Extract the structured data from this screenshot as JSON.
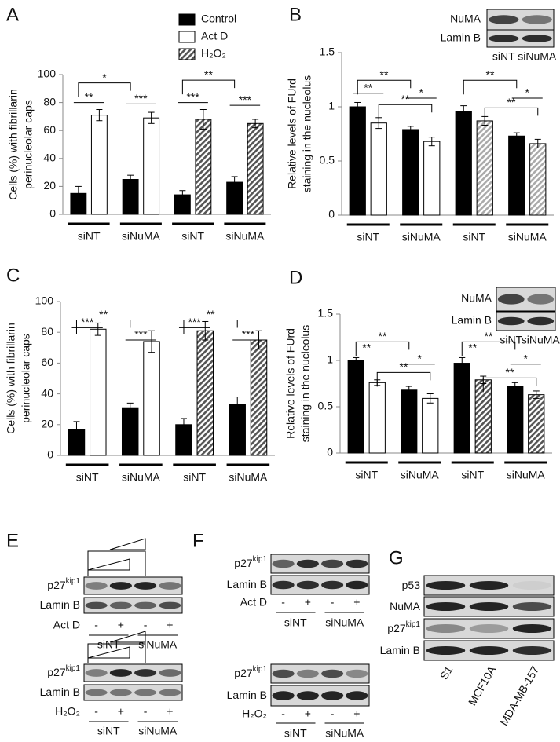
{
  "chart_data": [
    {
      "type": "bar",
      "panel": "A",
      "ylabel": [
        "Cells (%) with fibrillarin",
        "perinucleolar caps"
      ],
      "categories": [
        "siNT",
        "siNuMA",
        "siNT",
        "siNuMA"
      ],
      "series": [
        {
          "name": "Control",
          "color": "#000000",
          "values": [
            15,
            25,
            14,
            23
          ],
          "errors": [
            5,
            3,
            3,
            4
          ]
        },
        {
          "name": "Act D",
          "color": "#ffffff",
          "values": [
            71,
            69,
            null,
            null
          ],
          "errors": [
            4,
            4,
            null,
            null
          ]
        },
        {
          "name": "H₂O₂",
          "color": "#555555",
          "hatch": true,
          "values": [
            null,
            null,
            68,
            65
          ],
          "errors": [
            null,
            null,
            7,
            3
          ]
        }
      ],
      "ylim": [
        0,
        100
      ],
      "yticks": [
        0,
        20,
        40,
        60,
        80,
        100
      ],
      "annotations": [
        "*",
        "**",
        "***",
        "**",
        "***",
        "***"
      ]
    },
    {
      "type": "bar",
      "panel": "B",
      "ylabel": [
        "Relative levels of FUrd",
        "staining in the nucleolus"
      ],
      "categories": [
        "siNT",
        "siNuMA",
        "siNT",
        "siNuMA"
      ],
      "series": [
        {
          "color": "#000000",
          "values": [
            1.0,
            0.79,
            0.96,
            0.73
          ],
          "errors": [
            0.04,
            0.03,
            0.05,
            0.03
          ]
        },
        {
          "color": "#ffffff",
          "values": [
            0.85,
            0.68,
            null,
            null
          ],
          "errors": [
            0.05,
            0.04,
            null,
            null
          ]
        },
        {
          "color": "#aaaaaa",
          "hatch": true,
          "values": [
            null,
            null,
            0.87,
            0.66
          ],
          "errors": [
            null,
            null,
            0.04,
            0.04
          ]
        }
      ],
      "ylim": [
        0,
        1.5
      ],
      "yticks": [
        0,
        0.5,
        1,
        1.5
      ],
      "annotations": [
        "**",
        "**",
        "**",
        "*",
        "**",
        "*",
        "**"
      ],
      "inset": {
        "rows": [
          "NuMA",
          "Lamin B"
        ],
        "lanes": [
          "siNT",
          "siNuMA"
        ]
      }
    },
    {
      "type": "bar",
      "panel": "C",
      "ylabel": [
        "Cells (%) with fibrillarin",
        "perinucleolar caps"
      ],
      "categories": [
        "siNT",
        "siNuMA",
        "siNT",
        "siNuMA"
      ],
      "series": [
        {
          "color": "#000000",
          "values": [
            17,
            31,
            20,
            33
          ],
          "errors": [
            5,
            3,
            4,
            5
          ]
        },
        {
          "color": "#ffffff",
          "values": [
            82,
            74,
            null,
            null
          ],
          "errors": [
            4,
            7,
            null,
            null
          ]
        },
        {
          "color": "#555555",
          "hatch": true,
          "values": [
            null,
            null,
            81,
            75
          ],
          "errors": [
            null,
            null,
            6,
            6
          ]
        }
      ],
      "ylim": [
        0,
        100
      ],
      "yticks": [
        0,
        20,
        40,
        60,
        80,
        100
      ],
      "annotations": [
        "**",
        "***",
        "***",
        "**",
        "***",
        "***"
      ]
    },
    {
      "type": "bar",
      "panel": "D",
      "ylabel": [
        "Relative levels of FUrd",
        "staining in the nucleolus"
      ],
      "categories": [
        "siNT",
        "siNuMA",
        "siNT",
        "siNuMA"
      ],
      "series": [
        {
          "color": "#000000",
          "values": [
            1.0,
            0.68,
            0.97,
            0.72
          ],
          "errors": [
            0.03,
            0.04,
            0.06,
            0.04
          ]
        },
        {
          "color": "#ffffff",
          "values": [
            0.76,
            0.59,
            null,
            null
          ],
          "errors": [
            0.03,
            0.05,
            null,
            null
          ]
        },
        {
          "color": "#555555",
          "hatch": true,
          "values": [
            null,
            null,
            0.79,
            0.63
          ],
          "errors": [
            null,
            null,
            0.04,
            0.04
          ]
        }
      ],
      "ylim": [
        0,
        1.5
      ],
      "yticks": [
        0,
        0.5,
        1,
        1.5
      ],
      "annotations": [
        "**",
        "**",
        "**",
        "*",
        "**",
        "**",
        "*",
        "**"
      ],
      "inset": {
        "rows": [
          "NuMA",
          "Lamin B"
        ],
        "lanes": [
          "siNT",
          "siNuMA"
        ]
      }
    }
  ],
  "blots": {
    "E": {
      "panel": "E",
      "top": {
        "rows": [
          {
            "label": "p27",
            "sup": "kip1"
          },
          {
            "label": "Lamin B"
          }
        ],
        "treatment": "Act D",
        "signs": [
          "-",
          "+",
          "-",
          "+"
        ],
        "groups": [
          "siNT",
          "siNuMA"
        ]
      },
      "bottom": {
        "rows": [
          {
            "label": "p27",
            "sup": "kip1"
          },
          {
            "label": "Lamin B"
          }
        ],
        "treatment": "H₂O₂",
        "signs": [
          "-",
          "+",
          "-",
          "+"
        ],
        "groups": [
          "siNT",
          "siNuMA"
        ]
      }
    },
    "F": {
      "panel": "F",
      "top": {
        "rows": [
          {
            "label": "p27",
            "sup": "kip1"
          },
          {
            "label": "Lamin B"
          }
        ],
        "treatment": "Act D",
        "signs": [
          "-",
          "+",
          "-",
          "+"
        ],
        "groups": [
          "siNT",
          "siNuMA"
        ]
      },
      "bottom": {
        "rows": [
          {
            "label": "p27",
            "sup": "kip1"
          },
          {
            "label": "Lamin B"
          }
        ],
        "treatment": "H₂O₂",
        "signs": [
          "-",
          "+",
          "-",
          "+"
        ],
        "groups": [
          "siNT",
          "siNuMA"
        ]
      }
    },
    "G": {
      "panel": "G",
      "rows": [
        {
          "label": "p53"
        },
        {
          "label": "NuMA"
        },
        {
          "label": "p27",
          "sup": "kip1"
        },
        {
          "label": "Lamin B"
        }
      ],
      "lanes": [
        "S1",
        "MCF10A",
        "MDA-MB-157"
      ]
    }
  }
}
